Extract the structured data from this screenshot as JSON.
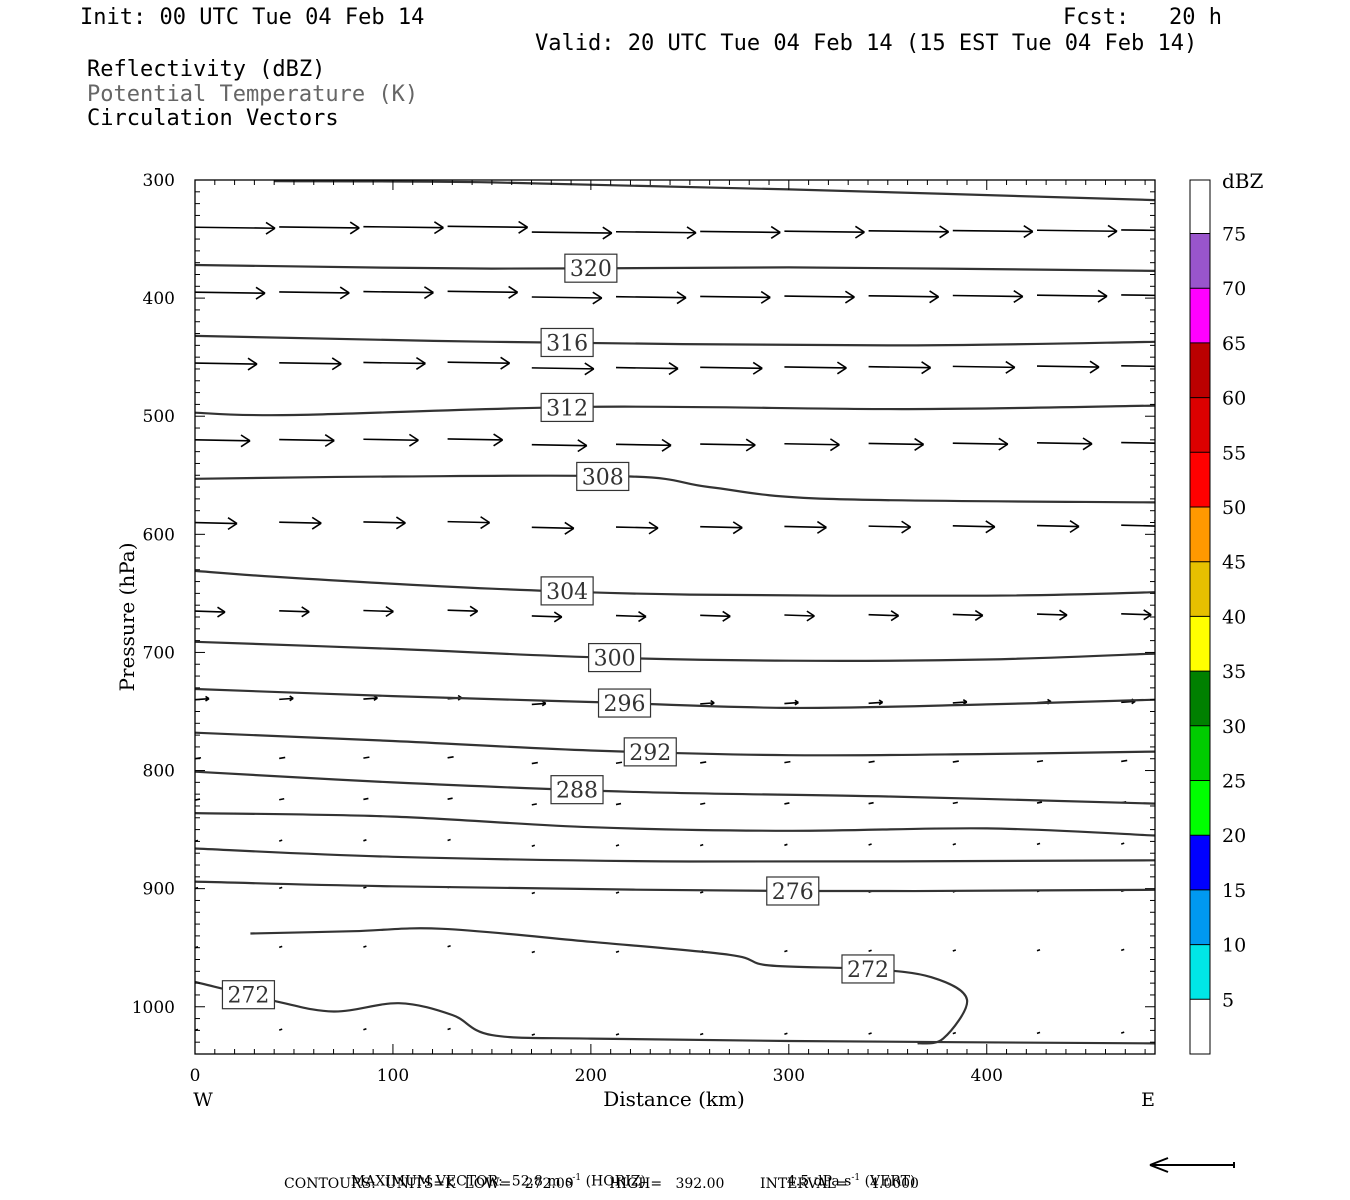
{
  "header": {
    "init": "Init: 00 UTC Tue 04 Feb 14",
    "fcst": "Fcst:   20 h",
    "valid": "Valid: 20 UTC Tue 04 Feb 14 (15 EST Tue 04 Feb 14)",
    "fields": [
      {
        "label": "Reflectivity (dBZ)",
        "color": "#000000"
      },
      {
        "label": "Potential Temperature (K)",
        "color": "#666666"
      },
      {
        "label": "Circulation Vectors",
        "color": "#000000"
      }
    ]
  },
  "footer": {
    "max_vector": "MAXIMUM VECTOR:  52.8 m s",
    "max_vector_sup": "-1",
    "max_vector_horiz": "(HORIZ)",
    "vert_value": "4.5 dPa s",
    "vert_sup": "-1",
    "vert_label": "(VERT)",
    "contours": "CONTOURS:  UNITS=K  LOW=   272.00        HIGH=   392.00        INTERVAL=     4.0000"
  },
  "chart_data": {
    "type": "contour",
    "xlabel": "Distance (km)",
    "ylabel": "Pressure (hPa)",
    "xlim": [
      0,
      485
    ],
    "ylim": [
      1040,
      300
    ],
    "x_ticks": [
      0,
      100,
      200,
      300,
      400
    ],
    "y_ticks": [
      300,
      400,
      500,
      600,
      700,
      800,
      900,
      1000
    ],
    "x_end_labels": {
      "left": "W",
      "right": "E"
    },
    "colorbar": {
      "title": "dBZ",
      "levels": [
        5,
        10,
        15,
        20,
        25,
        30,
        35,
        40,
        45,
        50,
        55,
        60,
        65,
        70,
        75
      ],
      "colors": [
        "#00e6e6",
        "#0099f0",
        "#0000ff",
        "#00ff00",
        "#00cc00",
        "#008000",
        "#ffff00",
        "#e6c000",
        "#ff9900",
        "#ff0000",
        "#dd0000",
        "#bb0000",
        "#ff00ff",
        "#9955cc"
      ]
    },
    "theta_contours": [
      {
        "label": "320",
        "label_x": 200,
        "points": [
          [
            0,
            372
          ],
          [
            150,
            375
          ],
          [
            300,
            374
          ],
          [
            485,
            377
          ]
        ]
      },
      {
        "label": "316",
        "label_x": 188,
        "points": [
          [
            0,
            432
          ],
          [
            150,
            437
          ],
          [
            350,
            440
          ],
          [
            485,
            437
          ]
        ]
      },
      {
        "label": "312",
        "label_x": 188,
        "points": [
          [
            0,
            497
          ],
          [
            50,
            499
          ],
          [
            200,
            492
          ],
          [
            360,
            494
          ],
          [
            485,
            491
          ]
        ]
      },
      {
        "label": "308",
        "label_x": 206,
        "points": [
          [
            0,
            553
          ],
          [
            100,
            551
          ],
          [
            220,
            551
          ],
          [
            260,
            560
          ],
          [
            320,
            570
          ],
          [
            485,
            573
          ]
        ]
      },
      {
        "label": "304",
        "label_x": 188,
        "points": [
          [
            0,
            631
          ],
          [
            50,
            637
          ],
          [
            150,
            646
          ],
          [
            250,
            651
          ],
          [
            400,
            652
          ],
          [
            485,
            649
          ]
        ]
      },
      {
        "label": "300",
        "label_x": 212,
        "points": [
          [
            0,
            691
          ],
          [
            100,
            697
          ],
          [
            200,
            704
          ],
          [
            300,
            707
          ],
          [
            400,
            706
          ],
          [
            485,
            701
          ]
        ]
      },
      {
        "label": "296",
        "label_x": 217,
        "points": [
          [
            0,
            731
          ],
          [
            100,
            737
          ],
          [
            200,
            742
          ],
          [
            300,
            747
          ],
          [
            400,
            744
          ],
          [
            485,
            740
          ]
        ]
      },
      {
        "label": "292",
        "label_x": 230,
        "points": [
          [
            0,
            768
          ],
          [
            100,
            775
          ],
          [
            200,
            783
          ],
          [
            300,
            787
          ],
          [
            400,
            786
          ],
          [
            485,
            784
          ]
        ]
      },
      {
        "label": "288",
        "label_x": 193,
        "points": [
          [
            0,
            801
          ],
          [
            100,
            810
          ],
          [
            220,
            818
          ],
          [
            350,
            822
          ],
          [
            485,
            828
          ]
        ]
      },
      {
        "label": "",
        "label_x": null,
        "points": [
          [
            0,
            836
          ],
          [
            100,
            839
          ],
          [
            200,
            848
          ],
          [
            300,
            851
          ],
          [
            400,
            849
          ],
          [
            485,
            855
          ]
        ]
      },
      {
        "label": "",
        "label_x": null,
        "points": [
          [
            0,
            866
          ],
          [
            100,
            873
          ],
          [
            250,
            877
          ],
          [
            485,
            876
          ]
        ]
      },
      {
        "label": "276",
        "label_x": 302,
        "points": [
          [
            0,
            894
          ],
          [
            100,
            898
          ],
          [
            300,
            902
          ],
          [
            485,
            901
          ]
        ]
      },
      {
        "label": "272",
        "label_x": 340,
        "closed": true,
        "points": [
          [
            28,
            938
          ],
          [
            80,
            936
          ],
          [
            125,
            934
          ],
          [
            200,
            945
          ],
          [
            270,
            956
          ],
          [
            290,
            965
          ],
          [
            340,
            968
          ],
          [
            372,
            975
          ],
          [
            390,
            994
          ],
          [
            378,
            1027
          ],
          [
            365,
            1031
          ]
        ]
      },
      {
        "label": "272",
        "label_x": 27,
        "points": [
          [
            0,
            979
          ],
          [
            40,
            995
          ],
          [
            70,
            1004
          ],
          [
            103,
            997
          ],
          [
            130,
            1007
          ],
          [
            150,
            1024
          ],
          [
            200,
            1027
          ],
          [
            300,
            1029
          ],
          [
            485,
            1031
          ]
        ]
      }
    ]
  }
}
